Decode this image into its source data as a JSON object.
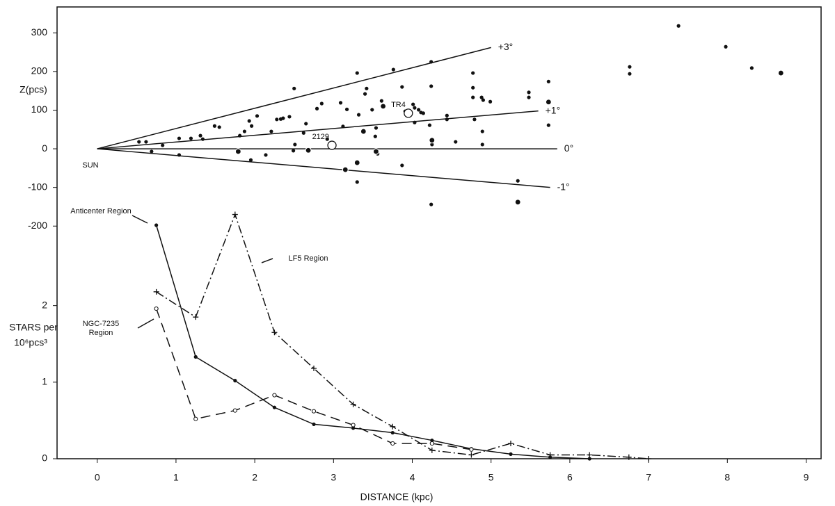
{
  "chart_data": [
    {
      "type": "scatter",
      "ylabel": "Z(pcs)",
      "xlim": [
        -0.51,
        9.19
      ],
      "ylim": [
        -802,
        367
      ],
      "yticks": [
        -200,
        -100,
        0,
        100,
        200,
        300
      ],
      "annotations": [
        "SUN"
      ],
      "series": [
        {
          "marker": "dot",
          "color": "#111",
          "x": [
            0.53,
            0.62,
            0.69,
            0.83,
            1.04,
            1.04,
            1.19,
            1.31,
            1.34,
            1.49,
            1.55,
            1.81,
            1.87,
            1.93,
            1.96,
            2.03,
            1.95,
            2.14,
            2.21,
            2.28,
            2.33,
            2.36,
            2.44,
            2.5,
            2.49,
            2.51,
            2.62,
            2.65,
            2.79,
            2.85,
            2.92,
            3.09,
            3.12,
            3.17,
            3.3,
            3.3,
            3.32,
            3.4,
            3.42,
            3.49,
            3.53,
            3.54,
            3.56,
            3.61,
            3.76,
            3.87,
            3.87,
            3.91,
            4.01,
            4.03,
            4.03,
            4.08,
            4.11,
            4.14,
            4.22,
            4.25,
            4.24,
            4.24,
            4.24,
            4.44,
            4.44,
            4.55,
            4.77,
            4.77,
            4.77,
            4.79,
            4.88,
            4.9,
            4.89,
            4.89,
            4.99,
            5.34,
            5.48,
            5.48,
            5.73,
            5.73,
            6.76,
            6.76,
            7.38,
            7.98,
            8.31
          ],
          "values": [
            18,
            18,
            -7,
            9,
            27,
            -16,
            27,
            34,
            25,
            59,
            56,
            34,
            45,
            72,
            59,
            85,
            -29,
            -16,
            45,
            76,
            77,
            79,
            83,
            156,
            -5,
            11,
            41,
            65,
            104,
            117,
            25,
            119,
            58,
            102,
            196,
            -86,
            88,
            142,
            156,
            101,
            32,
            54,
            -13,
            124,
            205,
            160,
            -43,
            97,
            115,
            106,
            68,
            101,
            94,
            92,
            61,
            11,
            162,
            225,
            -144,
            86,
            76,
            18,
            196,
            158,
            133,
            76,
            133,
            126,
            45,
            11,
            122,
            -83,
            146,
            133,
            174,
            61,
            212,
            194,
            318,
            264,
            209
          ]
        },
        {
          "marker": "ringed",
          "color": "#111",
          "x": [
            1.79,
            2.68,
            3.15,
            3.3,
            3.38,
            3.54,
            3.63,
            4.25,
            5.34,
            5.73,
            8.68
          ],
          "values": [
            -7,
            -4,
            -54,
            -36,
            45,
            -7,
            110,
            22,
            -138,
            121,
            196
          ]
        },
        {
          "marker": "open",
          "color": "#111",
          "labels": [
            "TR4",
            "2129"
          ],
          "x": [
            3.95,
            2.98
          ],
          "values": [
            92,
            9
          ]
        }
      ],
      "reference_lines": [
        {
          "label": "+3°",
          "x": [
            0,
            5.0
          ],
          "values": [
            0,
            262
          ]
        },
        {
          "label": "+1°",
          "x": [
            0,
            5.6
          ],
          "values": [
            0,
            98
          ]
        },
        {
          "label": "0°",
          "x": [
            0,
            5.84
          ],
          "values": [
            0,
            0
          ]
        },
        {
          "label": "-1°",
          "x": [
            0,
            5.75
          ],
          "values": [
            0,
            -100
          ]
        }
      ]
    },
    {
      "type": "line",
      "xlabel": "DISTANCE (kpc)",
      "ylabel": [
        "STARS per",
        "10⁶pcs³"
      ],
      "xlim": [
        -0.51,
        9.19
      ],
      "ylim": [
        0,
        5.9
      ],
      "xticks": [
        0,
        1,
        2,
        3,
        4,
        5,
        6,
        7,
        8,
        9
      ],
      "yticks": [
        0,
        1,
        2
      ],
      "series": [
        {
          "name": "Anticenter Region",
          "style": "solid",
          "marker": "dot",
          "color": "#111",
          "x": [
            0.75,
            1.25,
            1.75,
            2.25,
            2.75,
            3.25,
            3.75,
            4.25,
            4.75,
            5.25,
            5.75,
            6.25
          ],
          "values": [
            3.05,
            1.33,
            1.02,
            0.67,
            0.45,
            0.4,
            0.34,
            0.24,
            0.13,
            0.06,
            0.02,
            0.0
          ]
        },
        {
          "name": "LF5 Region",
          "style": "dash-dot",
          "marker": "plus",
          "color": "#111",
          "x": [
            0.75,
            1.25,
            1.75,
            2.25,
            2.75,
            3.25,
            3.75,
            4.25,
            4.75,
            5.25,
            5.75,
            6.25,
            6.75,
            7.0
          ],
          "values": [
            2.18,
            1.85,
            3.19,
            1.65,
            1.18,
            0.71,
            0.42,
            0.11,
            0.05,
            0.2,
            0.05,
            0.05,
            0.02,
            0.0
          ]
        },
        {
          "name": "NGC-7235 Region",
          "style": "dashed",
          "marker": "circle",
          "color": "#111",
          "x": [
            0.75,
            1.25,
            1.75,
            2.25,
            2.75,
            3.25,
            3.75,
            4.25,
            4.75
          ],
          "values": [
            1.96,
            0.52,
            0.63,
            0.83,
            0.62,
            0.44,
            0.2,
            0.2,
            0.12
          ]
        }
      ]
    }
  ]
}
